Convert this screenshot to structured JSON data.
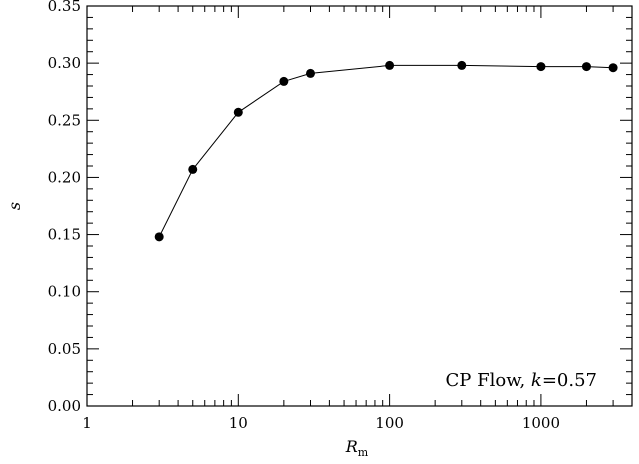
{
  "chart_data": {
    "type": "line",
    "x_scale": "log",
    "xlabel": "R",
    "xlabel_subscript": "m",
    "ylabel": "s",
    "xlim": [
      1,
      4000
    ],
    "ylim": [
      0,
      0.35
    ],
    "grid": false,
    "x_ticks": [
      {
        "value": 1,
        "label": "1"
      },
      {
        "value": 10,
        "label": "10"
      },
      {
        "value": 100,
        "label": "100"
      },
      {
        "value": 1000,
        "label": "1000"
      }
    ],
    "y_ticks": [
      {
        "value": 0.0,
        "label": "0.00"
      },
      {
        "value": 0.05,
        "label": "0.05"
      },
      {
        "value": 0.1,
        "label": "0.10"
      },
      {
        "value": 0.15,
        "label": "0.15"
      },
      {
        "value": 0.2,
        "label": "0.20"
      },
      {
        "value": 0.25,
        "label": "0.25"
      },
      {
        "value": 0.3,
        "label": "0.30"
      },
      {
        "value": 0.35,
        "label": "0.35"
      }
    ],
    "series": [
      {
        "x": [
          3,
          5,
          10,
          20,
          30,
          100,
          300,
          1000,
          2000,
          3000
        ],
        "y": [
          0.148,
          0.207,
          0.257,
          0.284,
          0.291,
          0.298,
          0.298,
          0.297,
          0.297,
          0.296
        ],
        "color": "#000000",
        "marker": "circle"
      }
    ],
    "annotation": {
      "text_prefix": "CP Flow, ",
      "text_var": "k",
      "text_suffix": "=0.57",
      "placement": "bottom-right"
    }
  }
}
